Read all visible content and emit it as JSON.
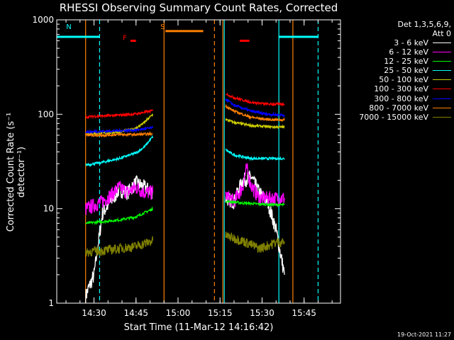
{
  "chart_data": {
    "type": "line",
    "title": "RHESSI Observing Summary Count Rates, Corrected",
    "xlabel": "Start Time (11-Mar-12 14:16:42)",
    "ylabel": "Corrected Count Rate (s⁻¹ detector⁻¹)",
    "yscale": "log",
    "ylim": [
      1,
      1000
    ],
    "xlim": [
      "14:16:42",
      "15:58:00"
    ],
    "xticks": [
      "14:30",
      "14:45",
      "15:00",
      "15:15",
      "15:30",
      "15:45"
    ],
    "yticks": [
      "1",
      "10",
      "100",
      "1000"
    ],
    "detector_info": "Det 1,3,5,6,9,",
    "attenuator_info": "Att 0",
    "timestamp": "19-Oct-2021 11:27",
    "series": [
      {
        "name": "3 - 6 keV",
        "color": "#ffffff",
        "segments": [
          {
            "t": [
              "14:27:00",
              "14:30:00",
              "14:33:00",
              "14:36:00",
              "14:39:00",
              "14:42:00",
              "14:45:00",
              "14:48:00",
              "14:51:00"
            ],
            "v": [
              1.2,
              2,
              9,
              12,
              16,
              15,
              19,
              17,
              15
            ]
          },
          {
            "t": [
              "15:17:00",
              "15:20:00",
              "15:23:00",
              "15:26:00",
              "15:29:00",
              "15:32:00",
              "15:35:00",
              "15:38:00"
            ],
            "v": [
              13,
              12,
              20,
              22,
              15,
              12,
              6,
              2
            ]
          }
        ]
      },
      {
        "name": "6 - 12 keV",
        "color": "#ff00ff",
        "segments": [
          {
            "t": [
              "14:27:00",
              "14:30:00",
              "14:33:00",
              "14:36:00",
              "14:39:00",
              "14:42:00",
              "14:45:00",
              "14:48:00",
              "14:51:00"
            ],
            "v": [
              10,
              11,
              12,
              14,
              17,
              15,
              17,
              15,
              15
            ]
          },
          {
            "t": [
              "15:17:00",
              "15:20:00",
              "15:23:00",
              "15:24:30",
              "15:26:00",
              "15:29:00",
              "15:32:00",
              "15:35:00",
              "15:38:00"
            ],
            "v": [
              14,
              12,
              17,
              27,
              18,
              13,
              13,
              13,
              13
            ]
          }
        ]
      },
      {
        "name": "12 - 25 keV",
        "color": "#00ff00",
        "segments": [
          {
            "t": [
              "14:27:00",
              "14:33:00",
              "14:39:00",
              "14:45:00",
              "14:51:00"
            ],
            "v": [
              7,
              7.3,
              7.6,
              8.2,
              10
            ]
          },
          {
            "t": [
              "15:17:00",
              "15:23:00",
              "15:29:00",
              "15:35:00",
              "15:38:00"
            ],
            "v": [
              12,
              11.5,
              11.2,
              11,
              11
            ]
          }
        ]
      },
      {
        "name": "25 - 50 keV",
        "color": "#00ffff",
        "segments": [
          {
            "t": [
              "14:27:00",
              "14:33:00",
              "14:39:00",
              "14:45:00",
              "14:48:00",
              "14:51:00"
            ],
            "v": [
              29,
              31,
              34,
              39,
              45,
              58
            ]
          },
          {
            "t": [
              "15:17:00",
              "15:20:00",
              "15:26:00",
              "15:32:00",
              "15:38:00"
            ],
            "v": [
              42,
              37,
              34,
              34,
              34
            ]
          }
        ]
      },
      {
        "name": "50 - 100 keV",
        "color": "#cccc00",
        "segments": [
          {
            "t": [
              "14:27:00",
              "14:33:00",
              "14:39:00",
              "14:45:00",
              "14:48:00",
              "14:51:00"
            ],
            "v": [
              62,
              63,
              65,
              71,
              82,
              100
            ]
          },
          {
            "t": [
              "15:17:00",
              "15:20:00",
              "15:26:00",
              "15:32:00",
              "15:38:00"
            ],
            "v": [
              88,
              82,
              76,
              74,
              73
            ]
          }
        ]
      },
      {
        "name": "100 - 300 keV",
        "color": "#ff0000",
        "segments": [
          {
            "t": [
              "14:27:00",
              "14:33:00",
              "14:39:00",
              "14:45:00",
              "14:51:00"
            ],
            "v": [
              94,
              96,
              98,
              101,
              109
            ]
          },
          {
            "t": [
              "15:17:00",
              "15:20:00",
              "15:26:00",
              "15:32:00",
              "15:38:00"
            ],
            "v": [
              165,
              150,
              134,
              128,
              128
            ]
          }
        ]
      },
      {
        "name": "300 - 800 keV",
        "color": "#0000ff",
        "segments": [
          {
            "t": [
              "14:27:00",
              "14:33:00",
              "14:39:00",
              "14:45:00",
              "14:51:00"
            ],
            "v": [
              65,
              66,
              67,
              68,
              72
            ]
          },
          {
            "t": [
              "15:17:00",
              "15:20:00",
              "15:26:00",
              "15:32:00",
              "15:38:00"
            ],
            "v": [
              145,
              125,
              108,
              100,
              98
            ]
          }
        ]
      },
      {
        "name": "800 - 7000 keV",
        "color": "#ff8000",
        "segments": [
          {
            "t": [
              "14:27:00",
              "14:33:00",
              "14:39:00",
              "14:45:00",
              "14:51:00"
            ],
            "v": [
              60,
              60,
              61,
              61,
              62
            ]
          },
          {
            "t": [
              "15:17:00",
              "15:20:00",
              "15:26:00",
              "15:32:00",
              "15:38:00"
            ],
            "v": [
              122,
              108,
              93,
              88,
              87
            ]
          }
        ]
      },
      {
        "name": "7000 - 15000 keV",
        "color": "#808000",
        "segments": [
          {
            "t": [
              "14:27:00",
              "14:33:00",
              "14:39:00",
              "14:45:00",
              "14:51:00"
            ],
            "v": [
              3.5,
              3.6,
              3.8,
              4.0,
              4.6
            ]
          },
          {
            "t": [
              "15:17:00",
              "15:23:00",
              "15:29:00",
              "15:35:00",
              "15:38:00"
            ],
            "v": [
              5.2,
              4.6,
              3.8,
              4.4,
              4.5
            ]
          }
        ]
      }
    ],
    "markers": [
      {
        "label": "N",
        "color": "#00ffff",
        "time": "14:21:00",
        "rate": 800
      },
      {
        "label": "F",
        "color": "#ff0000",
        "time": "14:41:00",
        "rate": 610
      },
      {
        "label": "S",
        "color": "#ff8000",
        "time": "14:54:30",
        "rate": 800
      }
    ],
    "intervals": [
      {
        "kind": "night",
        "color": "#00ffff",
        "t0": "14:16:42",
        "t1": "14:32:00",
        "rate": 660
      },
      {
        "kind": "night",
        "color": "#00ffff",
        "t0": "15:36:00",
        "t1": "15:50:00",
        "rate": 660
      },
      {
        "kind": "saa",
        "color": "#ff8000",
        "t0": "14:55:30",
        "t1": "15:09:00",
        "rate": 760
      },
      {
        "kind": "flare",
        "color": "#ff0000",
        "t0": "14:43:00",
        "t1": "14:45:00",
        "rate": 600
      },
      {
        "kind": "flare",
        "color": "#ff0000",
        "t0": "15:22:00",
        "t1": "15:25:30",
        "rate": 600
      }
    ],
    "boundaries": [
      {
        "color": "#00ffff",
        "time": "14:32:00",
        "style": "dashed"
      },
      {
        "color": "#00ffff",
        "time": "15:36:00",
        "style": "solid"
      },
      {
        "color": "#00ffff",
        "time": "15:50:00",
        "style": "dashed"
      },
      {
        "color": "#00ffff",
        "time": "15:16:30",
        "style": "solid"
      },
      {
        "color": "#ff8000",
        "time": "14:27:00",
        "style": "solid"
      },
      {
        "color": "#ff8000",
        "time": "14:55:00",
        "style": "solid"
      },
      {
        "color": "#ff8000",
        "time": "15:13:00",
        "style": "dashed"
      },
      {
        "color": "#ff8000",
        "time": "15:16:00",
        "style": "solid"
      },
      {
        "color": "#ff8000",
        "time": "15:41:00",
        "style": "solid"
      }
    ]
  }
}
